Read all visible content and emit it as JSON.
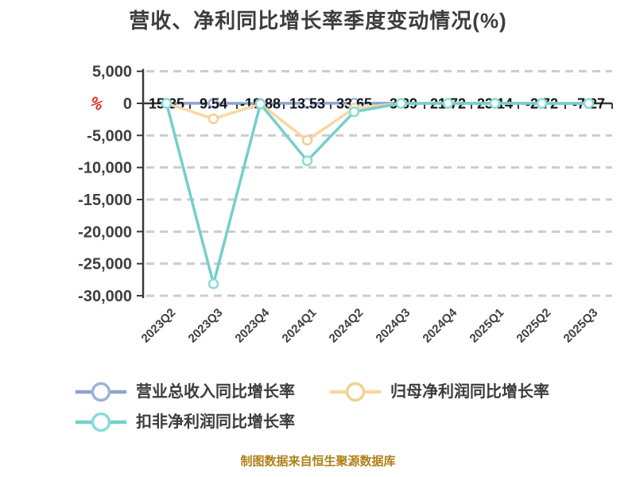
{
  "chart_data": {
    "type": "line",
    "title": "营收、净利同比增长率季度变动情况(%)",
    "unit": "%",
    "categories": [
      "2023Q2",
      "2023Q3",
      "2023Q4",
      "2024Q1",
      "2024Q2",
      "2024Q3",
      "2024Q4",
      "2025Q1",
      "2025Q2",
      "2025Q3"
    ],
    "y_axis": {
      "range": [
        -30000,
        5000
      ],
      "interval": 5000,
      "ticks": [
        {
          "value": 5000,
          "label": "5,000"
        },
        {
          "value": 0,
          "label": "0"
        },
        {
          "value": -5000,
          "label": "-5,000"
        },
        {
          "value": -10000,
          "label": "-10,000"
        },
        {
          "value": -15000,
          "label": "-15,000"
        },
        {
          "value": -20000,
          "label": "-20,000"
        },
        {
          "value": -25000,
          "label": "-25,000"
        },
        {
          "value": -30000,
          "label": "-30,000"
        }
      ]
    },
    "grid": "horizontal-dashed",
    "legend_position": "bottom-left",
    "series": [
      {
        "name": "营业总收入同比增长率",
        "color": "#8da3d0",
        "marker_color": "#9db2d9",
        "values": [
          15.35,
          9.54,
          -18.88,
          13.53,
          33.65,
          -3.39,
          21.72,
          23.14,
          -2.72,
          -7.27
        ],
        "data_labels": [
          "15.35",
          "9.54",
          "-18.88",
          "13.53",
          "33.65",
          "-3.39",
          "21.72",
          "23.14",
          "-2.72",
          "-7.27"
        ]
      },
      {
        "name": "归母净利润同比增长率",
        "color": "#f7d8a1",
        "marker_color": "#f2cf96",
        "estimated_from_pixels": true,
        "values": [
          0,
          -2400,
          -100,
          -5750,
          -740,
          0,
          0,
          0,
          0,
          0
        ]
      },
      {
        "name": "扣非净利润同比增长率",
        "color": "#74cfcd",
        "marker_color": "#8adbd8",
        "estimated_from_pixels": true,
        "values": [
          0,
          -28140,
          -100,
          -8950,
          -1320,
          0,
          0,
          0,
          0,
          0
        ]
      }
    ]
  },
  "footer": "制图数据来自恒生聚源数据库",
  "colors": {
    "background": "#ffffff",
    "title": "#3d3d3d",
    "axis": "#3a3a3a",
    "grid": "#cccccc",
    "tick_label": "#3f3f3f",
    "data_label": "#151515",
    "unit_label": "#e1251b",
    "footer": "#b0801a"
  }
}
